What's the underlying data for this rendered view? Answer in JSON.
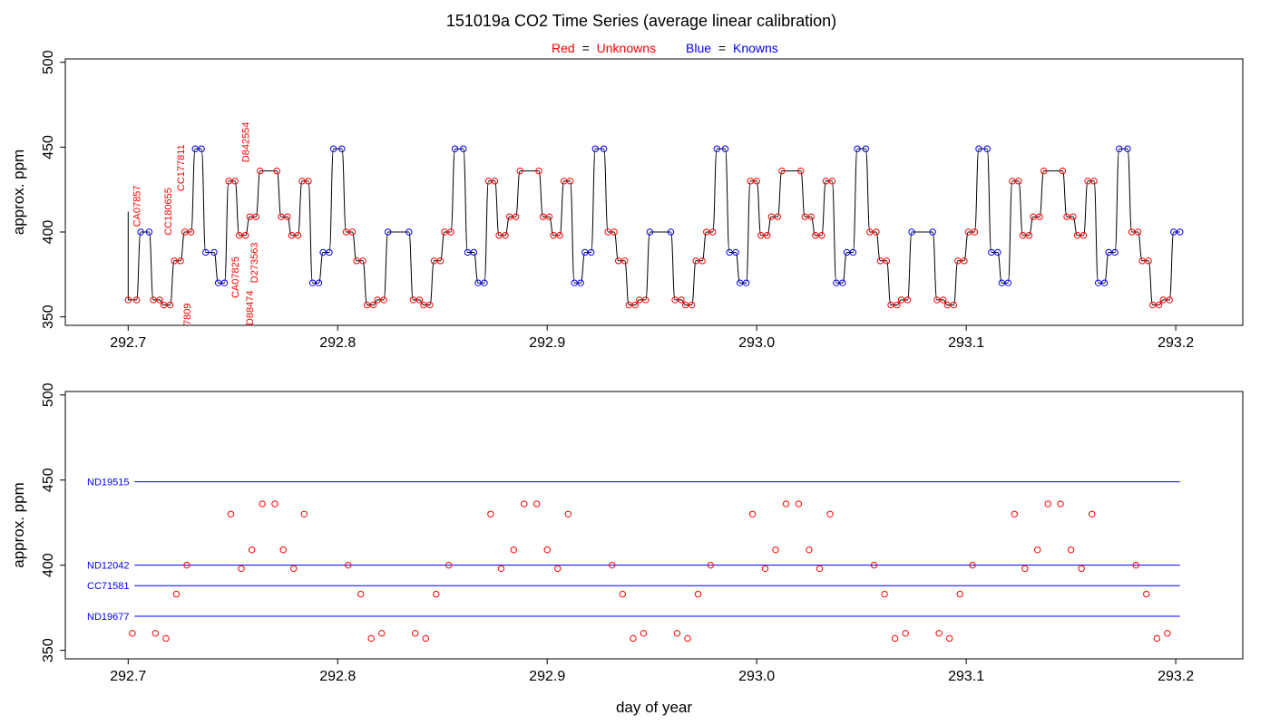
{
  "title": "151019a   CO2 Time Series (average linear calibration)",
  "legend": {
    "red_prefix": "Red",
    "red_word": "Unknowns",
    "blue_prefix": "Blue",
    "blue_word": "Knowns",
    "equals": "="
  },
  "colors": {
    "unknown": "#ff0000",
    "known": "#0000ff",
    "trace": "#000000"
  },
  "chart_data": [
    {
      "type": "line",
      "panel": "top",
      "xlim": [
        292.67,
        293.232
      ],
      "ylim": [
        345,
        502
      ],
      "x_ticks": [
        "292.7",
        "292.8",
        "292.9",
        "293.0",
        "293.1",
        "293.2"
      ],
      "y_ticks": [
        "350",
        "400",
        "450",
        "500"
      ],
      "ylabel": "approx. ppm",
      "xlabel": "",
      "trace_start": [
        292.7,
        412
      ],
      "levels": [
        {
          "x0": 292.7,
          "x1": 292.704,
          "y": 360,
          "k": false
        },
        {
          "x0": 292.706,
          "x1": 292.71,
          "y": 400,
          "k": true
        },
        {
          "x0": 292.712,
          "x1": 292.715,
          "y": 360,
          "k": false
        },
        {
          "x0": 292.717,
          "x1": 292.72,
          "y": 357,
          "k": false
        },
        {
          "x0": 292.722,
          "x1": 292.725,
          "y": 383,
          "k": false
        },
        {
          "x0": 292.727,
          "x1": 292.73,
          "y": 400,
          "k": false
        },
        {
          "x0": 292.732,
          "x1": 292.735,
          "y": 449,
          "k": true
        },
        {
          "x0": 292.737,
          "x1": 292.741,
          "y": 388,
          "k": true
        },
        {
          "x0": 292.743,
          "x1": 292.746,
          "y": 370,
          "k": true
        },
        {
          "x0": 292.748,
          "x1": 292.751,
          "y": 430,
          "k": false
        },
        {
          "x0": 292.753,
          "x1": 292.756,
          "y": 398,
          "k": false
        },
        {
          "x0": 292.758,
          "x1": 292.761,
          "y": 409,
          "k": false
        },
        {
          "x0": 292.763,
          "x1": 292.771,
          "y": 436,
          "k": false
        },
        {
          "x0": 292.773,
          "x1": 292.776,
          "y": 409,
          "k": false
        },
        {
          "x0": 292.778,
          "x1": 292.781,
          "y": 398,
          "k": false
        },
        {
          "x0": 292.783,
          "x1": 292.786,
          "y": 430,
          "k": false
        },
        {
          "x0": 292.788,
          "x1": 292.791,
          "y": 370,
          "k": true
        },
        {
          "x0": 292.793,
          "x1": 292.796,
          "y": 388,
          "k": true
        },
        {
          "x0": 292.798,
          "x1": 292.802,
          "y": 449,
          "k": true
        },
        {
          "x0": 292.804,
          "x1": 292.807,
          "y": 400,
          "k": false
        },
        {
          "x0": 292.809,
          "x1": 292.812,
          "y": 383,
          "k": false
        },
        {
          "x0": 292.814,
          "x1": 292.817,
          "y": 357,
          "k": false
        },
        {
          "x0": 292.819,
          "x1": 292.822,
          "y": 360,
          "k": false
        },
        {
          "x0": 292.824,
          "x1": 292.834,
          "y": 400,
          "k": true
        },
        {
          "x0": 292.836,
          "x1": 292.839,
          "y": 360,
          "k": false
        },
        {
          "x0": 292.841,
          "x1": 292.844,
          "y": 357,
          "k": false
        },
        {
          "x0": 292.846,
          "x1": 292.849,
          "y": 383,
          "k": false
        },
        {
          "x0": 292.851,
          "x1": 292.854,
          "y": 400,
          "k": false
        },
        {
          "x0": 292.856,
          "x1": 292.86,
          "y": 449,
          "k": true
        },
        {
          "x0": 292.862,
          "x1": 292.865,
          "y": 388,
          "k": true
        },
        {
          "x0": 292.867,
          "x1": 292.87,
          "y": 370,
          "k": true
        },
        {
          "x0": 292.872,
          "x1": 292.875,
          "y": 430,
          "k": false
        },
        {
          "x0": 292.877,
          "x1": 292.88,
          "y": 398,
          "k": false
        },
        {
          "x0": 292.882,
          "x1": 292.885,
          "y": 409,
          "k": false
        },
        {
          "x0": 292.887,
          "x1": 292.896,
          "y": 436,
          "k": false
        },
        {
          "x0": 292.898,
          "x1": 292.901,
          "y": 409,
          "k": false
        },
        {
          "x0": 292.903,
          "x1": 292.906,
          "y": 398,
          "k": false
        },
        {
          "x0": 292.908,
          "x1": 292.911,
          "y": 430,
          "k": false
        },
        {
          "x0": 292.913,
          "x1": 292.916,
          "y": 370,
          "k": true
        },
        {
          "x0": 292.918,
          "x1": 292.921,
          "y": 388,
          "k": true
        },
        {
          "x0": 292.923,
          "x1": 292.927,
          "y": 449,
          "k": true
        },
        {
          "x0": 292.929,
          "x1": 292.932,
          "y": 400,
          "k": false
        },
        {
          "x0": 292.934,
          "x1": 292.937,
          "y": 383,
          "k": false
        },
        {
          "x0": 292.939,
          "x1": 292.942,
          "y": 357,
          "k": false
        },
        {
          "x0": 292.944,
          "x1": 292.947,
          "y": 360,
          "k": false
        },
        {
          "x0": 292.949,
          "x1": 292.959,
          "y": 400,
          "k": true
        },
        {
          "x0": 292.961,
          "x1": 292.964,
          "y": 360,
          "k": false
        },
        {
          "x0": 292.966,
          "x1": 292.969,
          "y": 357,
          "k": false
        },
        {
          "x0": 292.971,
          "x1": 292.974,
          "y": 383,
          "k": false
        },
        {
          "x0": 292.976,
          "x1": 292.979,
          "y": 400,
          "k": false
        },
        {
          "x0": 292.981,
          "x1": 292.985,
          "y": 449,
          "k": true
        },
        {
          "x0": 292.987,
          "x1": 292.99,
          "y": 388,
          "k": true
        },
        {
          "x0": 292.992,
          "x1": 292.995,
          "y": 370,
          "k": true
        },
        {
          "x0": 292.997,
          "x1": 293.0,
          "y": 430,
          "k": false
        },
        {
          "x0": 293.002,
          "x1": 293.005,
          "y": 398,
          "k": false
        },
        {
          "x0": 293.007,
          "x1": 293.01,
          "y": 409,
          "k": false
        },
        {
          "x0": 293.012,
          "x1": 293.021,
          "y": 436,
          "k": false
        },
        {
          "x0": 293.023,
          "x1": 293.026,
          "y": 409,
          "k": false
        },
        {
          "x0": 293.028,
          "x1": 293.031,
          "y": 398,
          "k": false
        },
        {
          "x0": 293.033,
          "x1": 293.036,
          "y": 430,
          "k": false
        },
        {
          "x0": 293.038,
          "x1": 293.041,
          "y": 370,
          "k": true
        },
        {
          "x0": 293.043,
          "x1": 293.046,
          "y": 388,
          "k": true
        },
        {
          "x0": 293.048,
          "x1": 293.052,
          "y": 449,
          "k": true
        },
        {
          "x0": 293.054,
          "x1": 293.057,
          "y": 400,
          "k": false
        },
        {
          "x0": 293.059,
          "x1": 293.062,
          "y": 383,
          "k": false
        },
        {
          "x0": 293.064,
          "x1": 293.067,
          "y": 357,
          "k": false
        },
        {
          "x0": 293.069,
          "x1": 293.072,
          "y": 360,
          "k": false
        },
        {
          "x0": 293.074,
          "x1": 293.084,
          "y": 400,
          "k": true
        },
        {
          "x0": 293.086,
          "x1": 293.089,
          "y": 360,
          "k": false
        },
        {
          "x0": 293.091,
          "x1": 293.094,
          "y": 357,
          "k": false
        },
        {
          "x0": 293.096,
          "x1": 293.099,
          "y": 383,
          "k": false
        },
        {
          "x0": 293.101,
          "x1": 293.104,
          "y": 400,
          "k": false
        },
        {
          "x0": 293.106,
          "x1": 293.11,
          "y": 449,
          "k": true
        },
        {
          "x0": 293.112,
          "x1": 293.115,
          "y": 388,
          "k": true
        },
        {
          "x0": 293.117,
          "x1": 293.12,
          "y": 370,
          "k": true
        },
        {
          "x0": 293.122,
          "x1": 293.125,
          "y": 430,
          "k": false
        },
        {
          "x0": 293.127,
          "x1": 293.13,
          "y": 398,
          "k": false
        },
        {
          "x0": 293.132,
          "x1": 293.135,
          "y": 409,
          "k": false
        },
        {
          "x0": 293.137,
          "x1": 293.146,
          "y": 436,
          "k": false
        },
        {
          "x0": 293.148,
          "x1": 293.151,
          "y": 409,
          "k": false
        },
        {
          "x0": 293.153,
          "x1": 293.156,
          "y": 398,
          "k": false
        },
        {
          "x0": 293.158,
          "x1": 293.161,
          "y": 430,
          "k": false
        },
        {
          "x0": 293.163,
          "x1": 293.166,
          "y": 370,
          "k": true
        },
        {
          "x0": 293.168,
          "x1": 293.171,
          "y": 388,
          "k": true
        },
        {
          "x0": 293.173,
          "x1": 293.177,
          "y": 449,
          "k": true
        },
        {
          "x0": 293.179,
          "x1": 293.182,
          "y": 400,
          "k": false
        },
        {
          "x0": 293.184,
          "x1": 293.187,
          "y": 383,
          "k": false
        },
        {
          "x0": 293.189,
          "x1": 293.192,
          "y": 357,
          "k": false
        },
        {
          "x0": 293.194,
          "x1": 293.197,
          "y": 360,
          "k": false
        },
        {
          "x0": 293.199,
          "x1": 293.202,
          "y": 400,
          "k": true
        }
      ],
      "annotations": [
        {
          "text": "CA07857",
          "x": 292.704,
          "y": 403
        },
        {
          "text": "CC180655",
          "x": 292.719,
          "y": 398
        },
        {
          "text": "CC177811",
          "x": 292.725,
          "y": 424
        },
        {
          "text": "D842554",
          "x": 292.756,
          "y": 441
        },
        {
          "text": "CA07825",
          "x": 292.751,
          "y": 361
        },
        {
          "text": "D273563",
          "x": 292.76,
          "y": 370
        },
        {
          "text": "D88474",
          "x": 292.758,
          "y": 345
        },
        {
          "text": "7809",
          "x": 292.728,
          "y": 345
        }
      ]
    },
    {
      "type": "scatter",
      "panel": "bottom",
      "xlim": [
        292.67,
        293.232
      ],
      "ylim": [
        345,
        502
      ],
      "x_ticks": [
        "292.7",
        "292.8",
        "292.9",
        "293.0",
        "293.1",
        "293.2"
      ],
      "y_ticks": [
        "350",
        "400",
        "450",
        "500"
      ],
      "ylabel": "approx. ppm",
      "xlabel": "day of year",
      "reference_lines": [
        {
          "name": "ND19515",
          "y": 449,
          "x0": 292.703,
          "x1": 293.202
        },
        {
          "name": "ND12042",
          "y": 400,
          "x0": 292.703,
          "x1": 293.202
        },
        {
          "name": "CC71581",
          "y": 388,
          "x0": 292.703,
          "x1": 293.202
        },
        {
          "name": "ND19677",
          "y": 370,
          "x0": 292.703,
          "x1": 293.202
        }
      ],
      "points": [
        [
          292.702,
          360
        ],
        [
          292.713,
          360
        ],
        [
          292.718,
          357
        ],
        [
          292.723,
          383
        ],
        [
          292.728,
          400
        ],
        [
          292.749,
          430
        ],
        [
          292.754,
          398
        ],
        [
          292.759,
          409
        ],
        [
          292.764,
          436
        ],
        [
          292.77,
          436
        ],
        [
          292.774,
          409
        ],
        [
          292.779,
          398
        ],
        [
          292.784,
          430
        ],
        [
          292.805,
          400
        ],
        [
          292.811,
          383
        ],
        [
          292.816,
          357
        ],
        [
          292.821,
          360
        ],
        [
          292.837,
          360
        ],
        [
          292.842,
          357
        ],
        [
          292.847,
          383
        ],
        [
          292.853,
          400
        ],
        [
          292.873,
          430
        ],
        [
          292.878,
          398
        ],
        [
          292.884,
          409
        ],
        [
          292.889,
          436
        ],
        [
          292.895,
          436
        ],
        [
          292.9,
          409
        ],
        [
          292.905,
          398
        ],
        [
          292.91,
          430
        ],
        [
          292.931,
          400
        ],
        [
          292.936,
          383
        ],
        [
          292.941,
          357
        ],
        [
          292.946,
          360
        ],
        [
          292.962,
          360
        ],
        [
          292.967,
          357
        ],
        [
          292.972,
          383
        ],
        [
          292.978,
          400
        ],
        [
          292.998,
          430
        ],
        [
          293.004,
          398
        ],
        [
          293.009,
          409
        ],
        [
          293.014,
          436
        ],
        [
          293.02,
          436
        ],
        [
          293.025,
          409
        ],
        [
          293.03,
          398
        ],
        [
          293.035,
          430
        ],
        [
          293.056,
          400
        ],
        [
          293.061,
          383
        ],
        [
          293.066,
          357
        ],
        [
          293.071,
          360
        ],
        [
          293.087,
          360
        ],
        [
          293.092,
          357
        ],
        [
          293.097,
          383
        ],
        [
          293.103,
          400
        ],
        [
          293.123,
          430
        ],
        [
          293.128,
          398
        ],
        [
          293.134,
          409
        ],
        [
          293.139,
          436
        ],
        [
          293.145,
          436
        ],
        [
          293.15,
          409
        ],
        [
          293.155,
          398
        ],
        [
          293.16,
          430
        ],
        [
          293.181,
          400
        ],
        [
          293.186,
          383
        ],
        [
          293.191,
          357
        ],
        [
          293.196,
          360
        ]
      ]
    }
  ]
}
